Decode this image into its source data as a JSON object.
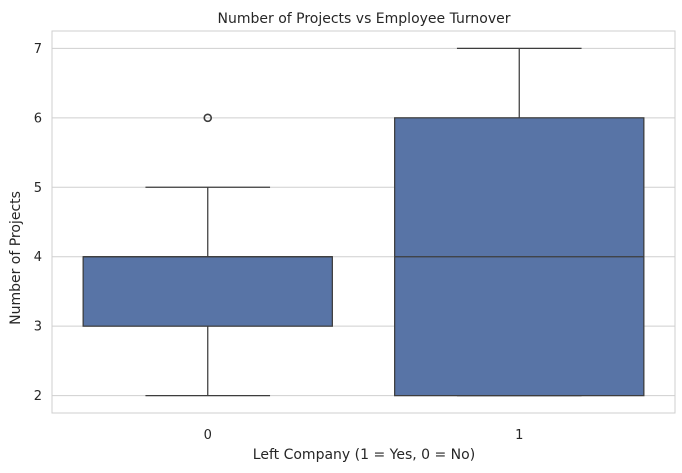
{
  "chart_data": {
    "type": "box",
    "title": "Number of Projects vs Employee Turnover",
    "xlabel": "Left Company (1 = Yes, 0 = No)",
    "ylabel": "Number of Projects",
    "categories": [
      "0",
      "1"
    ],
    "boxes": [
      {
        "category": "0",
        "whisker_low": 2,
        "q1": 3,
        "median": 4,
        "q3": 4,
        "whisker_high": 5,
        "outliers": [
          6
        ]
      },
      {
        "category": "1",
        "whisker_low": 2,
        "q1": 2,
        "median": 4,
        "q3": 6,
        "whisker_high": 7,
        "outliers": []
      }
    ],
    "yticks": [
      2,
      3,
      4,
      5,
      6,
      7
    ],
    "ylim": [
      1.75,
      7.25
    ],
    "grid": "horizontal",
    "colors": {
      "box_fill": "#5874a6",
      "box_edge": "#3d3d3d",
      "grid": "#cfcfcf",
      "frame": "#cfcfcf"
    }
  }
}
